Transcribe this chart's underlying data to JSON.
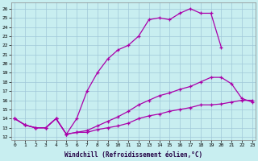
{
  "xlabel": "Windchill (Refroidissement éolien,°C)",
  "background_color": "#c8eef0",
  "grid_color": "#a0c8d8",
  "line_color": "#aa00aa",
  "yticks": [
    12,
    13,
    14,
    15,
    16,
    17,
    18,
    19,
    20,
    21,
    22,
    23,
    24,
    25,
    26
  ],
  "xticks": [
    0,
    1,
    2,
    3,
    4,
    5,
    6,
    7,
    8,
    9,
    10,
    11,
    12,
    13,
    14,
    15,
    16,
    17,
    18,
    19,
    20,
    21,
    22,
    23
  ],
  "top_x": [
    0,
    1,
    2,
    3,
    4,
    5,
    6,
    7,
    8,
    9,
    10,
    11,
    12,
    13,
    14,
    15,
    16,
    17,
    18,
    19,
    20
  ],
  "top_y": [
    14,
    13.3,
    13.0,
    13.0,
    14.0,
    12.3,
    14.0,
    17.0,
    19.0,
    20.5,
    21.5,
    22.0,
    23.0,
    24.8,
    25.0,
    24.8,
    25.5,
    26.0,
    25.5,
    25.5,
    21.8
  ],
  "mid_x": [
    0,
    1,
    2,
    3,
    4,
    5,
    6,
    7,
    8,
    9,
    10,
    11,
    12,
    13,
    14,
    15,
    16,
    17,
    18,
    19,
    20,
    21,
    22,
    23
  ],
  "mid_y": [
    14,
    13.3,
    13.0,
    13.0,
    14.0,
    12.3,
    12.5,
    12.7,
    13.2,
    13.7,
    14.2,
    14.8,
    15.5,
    16.0,
    16.5,
    16.8,
    17.2,
    17.5,
    18.0,
    18.5,
    18.5,
    17.8,
    16.2,
    15.8
  ],
  "bot_x": [
    0,
    1,
    2,
    3,
    4,
    5,
    6,
    7,
    8,
    9,
    10,
    11,
    12,
    13,
    14,
    15,
    16,
    17,
    18,
    19,
    20,
    21,
    22,
    23
  ],
  "bot_y": [
    14,
    13.3,
    13.0,
    13.0,
    14.0,
    12.3,
    12.5,
    12.5,
    12.8,
    13.0,
    13.2,
    13.5,
    14.0,
    14.3,
    14.5,
    14.8,
    15.0,
    15.2,
    15.5,
    15.5,
    15.6,
    15.8,
    16.0,
    16.0
  ]
}
